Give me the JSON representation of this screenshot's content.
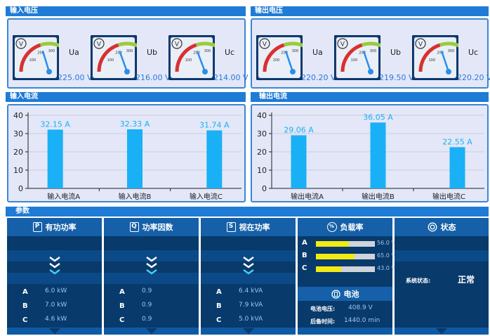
{
  "input_voltage": {
    "title": "输入电压",
    "gauges": [
      {
        "label": "Ua",
        "value": "225.00 V",
        "reading": 225
      },
      {
        "label": "Ub",
        "value": "216.00 V",
        "reading": 216
      },
      {
        "label": "Uc",
        "value": "214.00 V",
        "reading": 214
      }
    ]
  },
  "output_voltage": {
    "title": "输出电压",
    "gauges": [
      {
        "label": "Ua",
        "value": "220.20 V",
        "reading": 220.2
      },
      {
        "label": "Ub",
        "value": "219.50 V",
        "reading": 219.5
      },
      {
        "label": "Uc",
        "value": "220.20 V",
        "reading": 220.2
      }
    ]
  },
  "gauge_scale": {
    "unit": "V",
    "ticks": [
      "100",
      "200",
      "300",
      "400",
      "500"
    ],
    "range": [
      0,
      500
    ]
  },
  "input_current": {
    "title": "输入电流"
  },
  "output_current": {
    "title": "输出电流"
  },
  "params": {
    "title": "参数",
    "active_power": {
      "title": "有功功率",
      "badge": "P",
      "rows": [
        {
          "phase": "A",
          "value": "6.0 kW"
        },
        {
          "phase": "B",
          "value": "7.0 kW"
        },
        {
          "phase": "C",
          "value": "4.6 kW"
        }
      ]
    },
    "power_factor": {
      "title": "功率因数",
      "badge": "Q",
      "rows": [
        {
          "phase": "A",
          "value": "0.9"
        },
        {
          "phase": "B",
          "value": "0.9"
        },
        {
          "phase": "C",
          "value": "0.9"
        }
      ]
    },
    "apparent_power": {
      "title": "视在功率",
      "badge": "S",
      "rows": [
        {
          "phase": "A",
          "value": "6.4 kVA"
        },
        {
          "phase": "B",
          "value": "7.9 kVA"
        },
        {
          "phase": "C",
          "value": "5.0 kVA"
        }
      ]
    },
    "load_rate": {
      "title": "负载率",
      "badge": "%",
      "rows": [
        {
          "phase": "A",
          "value": "56.0 %",
          "fraction": 0.56
        },
        {
          "phase": "B",
          "value": "65.0 %",
          "fraction": 0.65
        },
        {
          "phase": "C",
          "value": "43.0 %",
          "fraction": 0.43
        }
      ]
    },
    "battery": {
      "title": "电池",
      "voltage_label": "电池电压:",
      "voltage": "408.9 V",
      "backup_label": "后备时间:",
      "backup": "1440.0 min"
    },
    "status": {
      "title": "状态",
      "label": "系统状态:",
      "value": "正常"
    }
  },
  "colors": {
    "header": "#1e7bd6",
    "bar": "#1ab0f5",
    "panel_bg": "#e3e7f8",
    "dark": "#083a6b",
    "accent": "#f2ea14"
  },
  "chart_data": [
    {
      "type": "bar",
      "categories": [
        "输入电流A",
        "输入电流B",
        "输入电流C"
      ],
      "values": [
        32.15,
        32.33,
        31.74
      ],
      "labels": [
        "32.15 A",
        "32.33 A",
        "31.74 A"
      ],
      "ylim": [
        0,
        40
      ],
      "yticks": [
        "0",
        "10",
        "20",
        "30",
        "40"
      ]
    },
    {
      "type": "bar",
      "categories": [
        "输出电流A",
        "输出电流B",
        "输出电流C"
      ],
      "values": [
        29.06,
        36.05,
        22.55
      ],
      "labels": [
        "29.06 A",
        "36.05 A",
        "22.55 A"
      ],
      "ylim": [
        0,
        40
      ],
      "yticks": [
        "0",
        "10",
        "20",
        "30",
        "40"
      ]
    }
  ]
}
